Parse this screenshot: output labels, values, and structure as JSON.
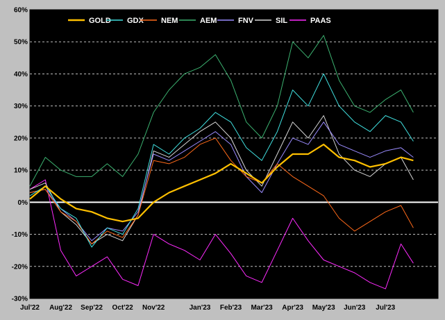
{
  "chart_data": {
    "type": "line",
    "title": "",
    "xlabel": "",
    "ylabel": "",
    "x_unit": "month index (0 = Jul'22, 12 = Jul'23)",
    "ylim": [
      -30,
      60
    ],
    "xlim": [
      0,
      13.2
    ],
    "y_ticks": [
      "60%",
      "50%",
      "40%",
      "30%",
      "20%",
      "10%",
      "0%",
      "-10%",
      "-20%",
      "-30%"
    ],
    "x_ticks": [
      "Jul'22",
      "Aug'22",
      "Sep'22",
      "Oct'22",
      "Nov'22",
      "Jan'23",
      "Feb'23",
      "Mar'23",
      "Apr'23",
      "May'23",
      "Jun'23",
      "Jul'23"
    ],
    "x_tick_positions": [
      0,
      1,
      2,
      3,
      4,
      5.5,
      6.5,
      7.5,
      8.5,
      9.5,
      10.5,
      11.5
    ],
    "grid": "horizontal dashed",
    "legend_position": "top",
    "background": "#000000",
    "series": [
      {
        "name": "GOLD",
        "color": "#ffc000",
        "width": 2.2,
        "x": [
          0,
          0.5,
          1,
          1.5,
          2,
          2.5,
          3,
          3.5,
          4,
          4.5,
          5,
          5.5,
          6,
          6.5,
          7,
          7.5,
          8,
          8.5,
          9,
          9.5,
          10,
          10.5,
          11,
          11.5,
          12,
          12.4
        ],
        "values": [
          1,
          5,
          1,
          -2,
          -3,
          -5,
          -6,
          -5,
          0,
          3,
          5,
          7,
          9,
          12,
          9,
          6,
          11,
          15,
          15,
          18,
          14,
          13,
          11,
          12,
          14,
          13
        ]
      },
      {
        "name": "GDX",
        "color": "#40e0e0",
        "width": 1,
        "x": [
          0,
          0.5,
          1,
          1.5,
          2,
          2.5,
          3,
          3.5,
          4,
          4.5,
          5,
          5.5,
          6,
          6.5,
          7,
          7.5,
          8,
          8.5,
          9,
          9.5,
          10,
          10.5,
          11,
          11.5,
          12,
          12.4
        ],
        "values": [
          2,
          5,
          -2,
          -5,
          -14,
          -8,
          -10,
          -2,
          18,
          15,
          20,
          23,
          28,
          25,
          17,
          13,
          22,
          35,
          30,
          40,
          30,
          25,
          22,
          27,
          25,
          19
        ]
      },
      {
        "name": "NEM",
        "color": "#ff6a1a",
        "width": 1,
        "x": [
          0,
          0.5,
          1,
          1.5,
          2,
          2.5,
          3,
          3.5,
          4,
          4.5,
          5,
          5.5,
          6,
          6.5,
          7,
          7.5,
          8,
          8.5,
          9,
          9.5,
          10,
          10.5,
          11,
          11.5,
          12,
          12.4
        ],
        "values": [
          3,
          4,
          -3,
          -6,
          -13,
          -9,
          -11,
          -4,
          13,
          12,
          14,
          18,
          20,
          13,
          8,
          6,
          12,
          8,
          5,
          2,
          -5,
          -9,
          -6,
          -3,
          -1,
          -8
        ]
      },
      {
        "name": "AEM",
        "color": "#3cb371",
        "width": 1,
        "x": [
          0,
          0.5,
          1,
          1.5,
          2,
          2.5,
          3,
          3.5,
          4,
          4.5,
          5,
          5.5,
          6,
          6.5,
          7,
          7.5,
          8,
          8.5,
          9,
          9.5,
          10,
          10.5,
          11,
          11.5,
          12,
          12.4
        ],
        "values": [
          5,
          14,
          10,
          8,
          8,
          12,
          8,
          15,
          28,
          35,
          40,
          42,
          46,
          38,
          25,
          20,
          30,
          50,
          45,
          52,
          38,
          30,
          28,
          32,
          35,
          28
        ]
      },
      {
        "name": "FNV",
        "color": "#9b8cff",
        "width": 1,
        "x": [
          0,
          0.5,
          1,
          1.5,
          2,
          2.5,
          3,
          3.5,
          4,
          4.5,
          5,
          5.5,
          6,
          6.5,
          7,
          7.5,
          8,
          8.5,
          9,
          9.5,
          10,
          10.5,
          11,
          11.5,
          12,
          12.4
        ],
        "values": [
          3,
          4,
          -2,
          -6,
          -12,
          -8,
          -9,
          -3,
          15,
          13,
          16,
          19,
          22,
          18,
          8,
          3,
          12,
          20,
          18,
          25,
          18,
          16,
          14,
          16,
          17,
          14
        ]
      },
      {
        "name": "SIL",
        "color": "#d8d8d8",
        "width": 1,
        "x": [
          0,
          0.5,
          1,
          1.5,
          2,
          2.5,
          3,
          3.5,
          4,
          4.5,
          5,
          5.5,
          6,
          6.5,
          7,
          7.5,
          8,
          8.5,
          9,
          9.5,
          10,
          10.5,
          11,
          11.5,
          12,
          12.4
        ],
        "values": [
          4,
          6,
          -3,
          -7,
          -13,
          -10,
          -12,
          -4,
          16,
          14,
          18,
          22,
          25,
          20,
          10,
          5,
          15,
          25,
          20,
          27,
          15,
          10,
          8,
          12,
          14,
          7
        ]
      },
      {
        "name": "PAAS",
        "color": "#ff2bff",
        "width": 1,
        "x": [
          0,
          0.5,
          1,
          1.5,
          2,
          2.5,
          3,
          3.5,
          4,
          4.5,
          5,
          5.5,
          6,
          6.5,
          7,
          7.5,
          8,
          8.5,
          9,
          9.5,
          10,
          10.5,
          11,
          11.5,
          12,
          12.4
        ],
        "values": [
          4,
          7,
          -15,
          -23,
          -20,
          -17,
          -24,
          -26,
          -10,
          -13,
          -15,
          -18,
          -10,
          -16,
          -23,
          -25,
          -15,
          -5,
          -12,
          -18,
          -20,
          -22,
          -25,
          -27,
          -13,
          -19
        ]
      }
    ]
  }
}
